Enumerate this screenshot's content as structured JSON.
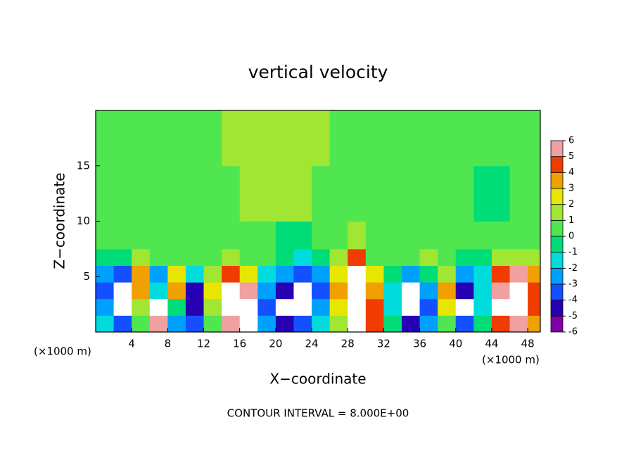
{
  "chart_data": {
    "type": "heatmap",
    "title": "vertical velocity",
    "x_label": "X−coordinate",
    "y_label": "Z−coordinate",
    "x_unit": "(×1000 m)",
    "footer": "CONTOUR INTERVAL = 8.000E+00",
    "xlim": [
      0,
      49.4
    ],
    "ylim": [
      0,
      20
    ],
    "xticks": [
      4,
      8,
      12,
      16,
      20,
      24,
      28,
      32,
      36,
      40,
      44,
      48
    ],
    "yticks": [
      5,
      10,
      15
    ],
    "x_edges": [
      0,
      2,
      4,
      6,
      8,
      10,
      12,
      14,
      16,
      18,
      20,
      22,
      24,
      26,
      28,
      30,
      32,
      34,
      36,
      38,
      40,
      42,
      44,
      46,
      48,
      50
    ],
    "y_edges": [
      0,
      1.5,
      3,
      4.5,
      6,
      7.5,
      10,
      15,
      20
    ],
    "values": [
      [
        -2,
        -4,
        0,
        5,
        -3,
        -4,
        0,
        5,
        6,
        -3,
        -5,
        -4,
        -2,
        1,
        6,
        4,
        -1,
        -5,
        -3,
        0,
        -4,
        -1,
        4,
        5,
        3
      ],
      [
        -3,
        -6,
        1,
        6,
        -1,
        -5,
        1,
        6,
        6,
        -4,
        -6,
        -6,
        -3,
        2,
        6,
        4,
        -2,
        -6,
        -4,
        2,
        -6,
        -2,
        6,
        6,
        4
      ],
      [
        -4,
        -6,
        3,
        -2,
        3,
        -5,
        2,
        6,
        5,
        -3,
        -5,
        -6,
        -4,
        3,
        6,
        3,
        -2,
        -6,
        -3,
        3,
        -5,
        -2,
        5,
        6,
        4
      ],
      [
        -3,
        -4,
        3,
        -3,
        2,
        -2,
        1,
        4,
        2,
        -2,
        -3,
        -4,
        -3,
        2,
        6,
        2,
        -1,
        -3,
        -1,
        1,
        -3,
        -2,
        4,
        5,
        3
      ],
      [
        -1,
        -1,
        1,
        0,
        0,
        0,
        0,
        1,
        0,
        0,
        -1,
        -2,
        -1,
        1,
        4,
        0,
        0,
        0,
        1,
        0,
        -1,
        -1,
        1,
        1,
        1
      ],
      [
        0,
        0,
        0,
        0,
        0,
        0,
        0,
        0,
        0,
        0,
        -1,
        -1,
        0,
        0,
        1,
        0,
        0,
        0,
        0,
        0,
        0,
        0,
        0,
        0,
        0
      ],
      [
        0,
        0,
        0,
        0,
        0,
        0,
        0,
        0,
        1,
        1,
        1,
        1,
        0,
        0,
        0,
        0,
        0,
        0,
        0,
        0,
        0,
        -1,
        -1,
        0,
        0
      ],
      [
        0,
        0,
        0,
        0,
        0,
        0,
        0,
        1,
        1,
        1,
        1,
        1,
        1,
        0,
        0,
        0,
        0,
        0,
        0,
        0,
        0,
        0,
        0,
        0,
        0
      ]
    ],
    "levels": [
      -6,
      -5,
      -4,
      -3,
      -2,
      -1,
      0,
      1,
      2,
      3,
      4,
      5,
      6
    ],
    "colors": [
      "#7f00a8",
      "#2800b4",
      "#1450ff",
      "#00a0ff",
      "#00dcdc",
      "#00dc78",
      "#50e650",
      "#a0e632",
      "#e6e600",
      "#f0a000",
      "#f03c00",
      "#f0a0a0"
    ],
    "extreme_color": "#ffffff"
  }
}
